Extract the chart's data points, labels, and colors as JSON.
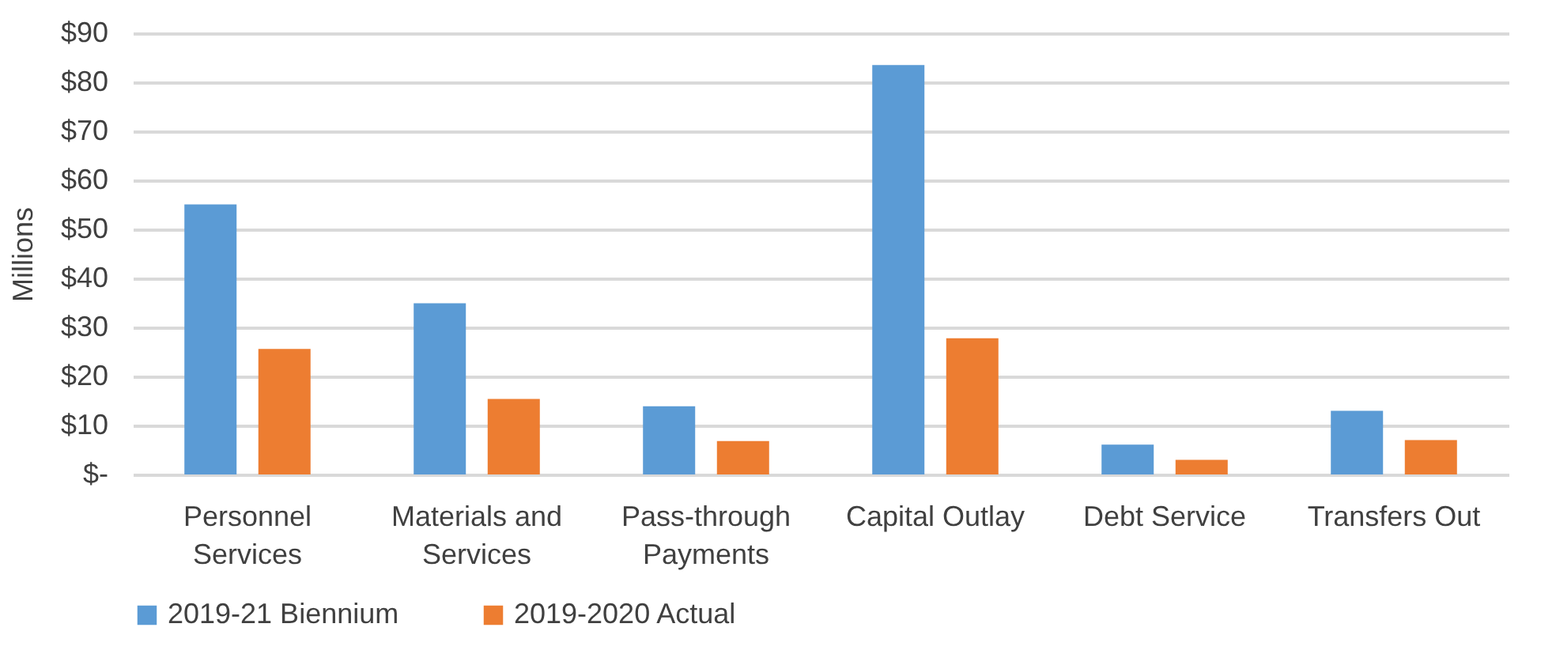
{
  "chart_data": {
    "type": "bar",
    "ylabel": "Millions",
    "categories": [
      "Personnel Services",
      "Materials and Services",
      "Pass-through Payments",
      "Capital Outlay",
      "Debt Service",
      "Transfers Out"
    ],
    "series": [
      {
        "name": "2019-21 Biennium",
        "color": "#5b9bd5",
        "values": [
          55.1,
          34.9,
          13.9,
          83.5,
          6.1,
          13.0
        ]
      },
      {
        "name": "2019-2020 Actual",
        "color": "#ed7d31",
        "values": [
          25.6,
          15.4,
          6.8,
          27.8,
          3.0,
          7.0
        ]
      }
    ],
    "ylim": [
      0,
      90
    ],
    "yticks": [
      {
        "value": 0,
        "label": "$-"
      },
      {
        "value": 10,
        "label": "$10"
      },
      {
        "value": 20,
        "label": "$20"
      },
      {
        "value": 30,
        "label": "$30"
      },
      {
        "value": 40,
        "label": "$40"
      },
      {
        "value": 50,
        "label": "$50"
      },
      {
        "value": 60,
        "label": "$60"
      },
      {
        "value": 70,
        "label": "$70"
      },
      {
        "value": 80,
        "label": "$80"
      },
      {
        "value": 90,
        "label": "$90"
      }
    ],
    "grid": "y",
    "legend": "bottom"
  }
}
